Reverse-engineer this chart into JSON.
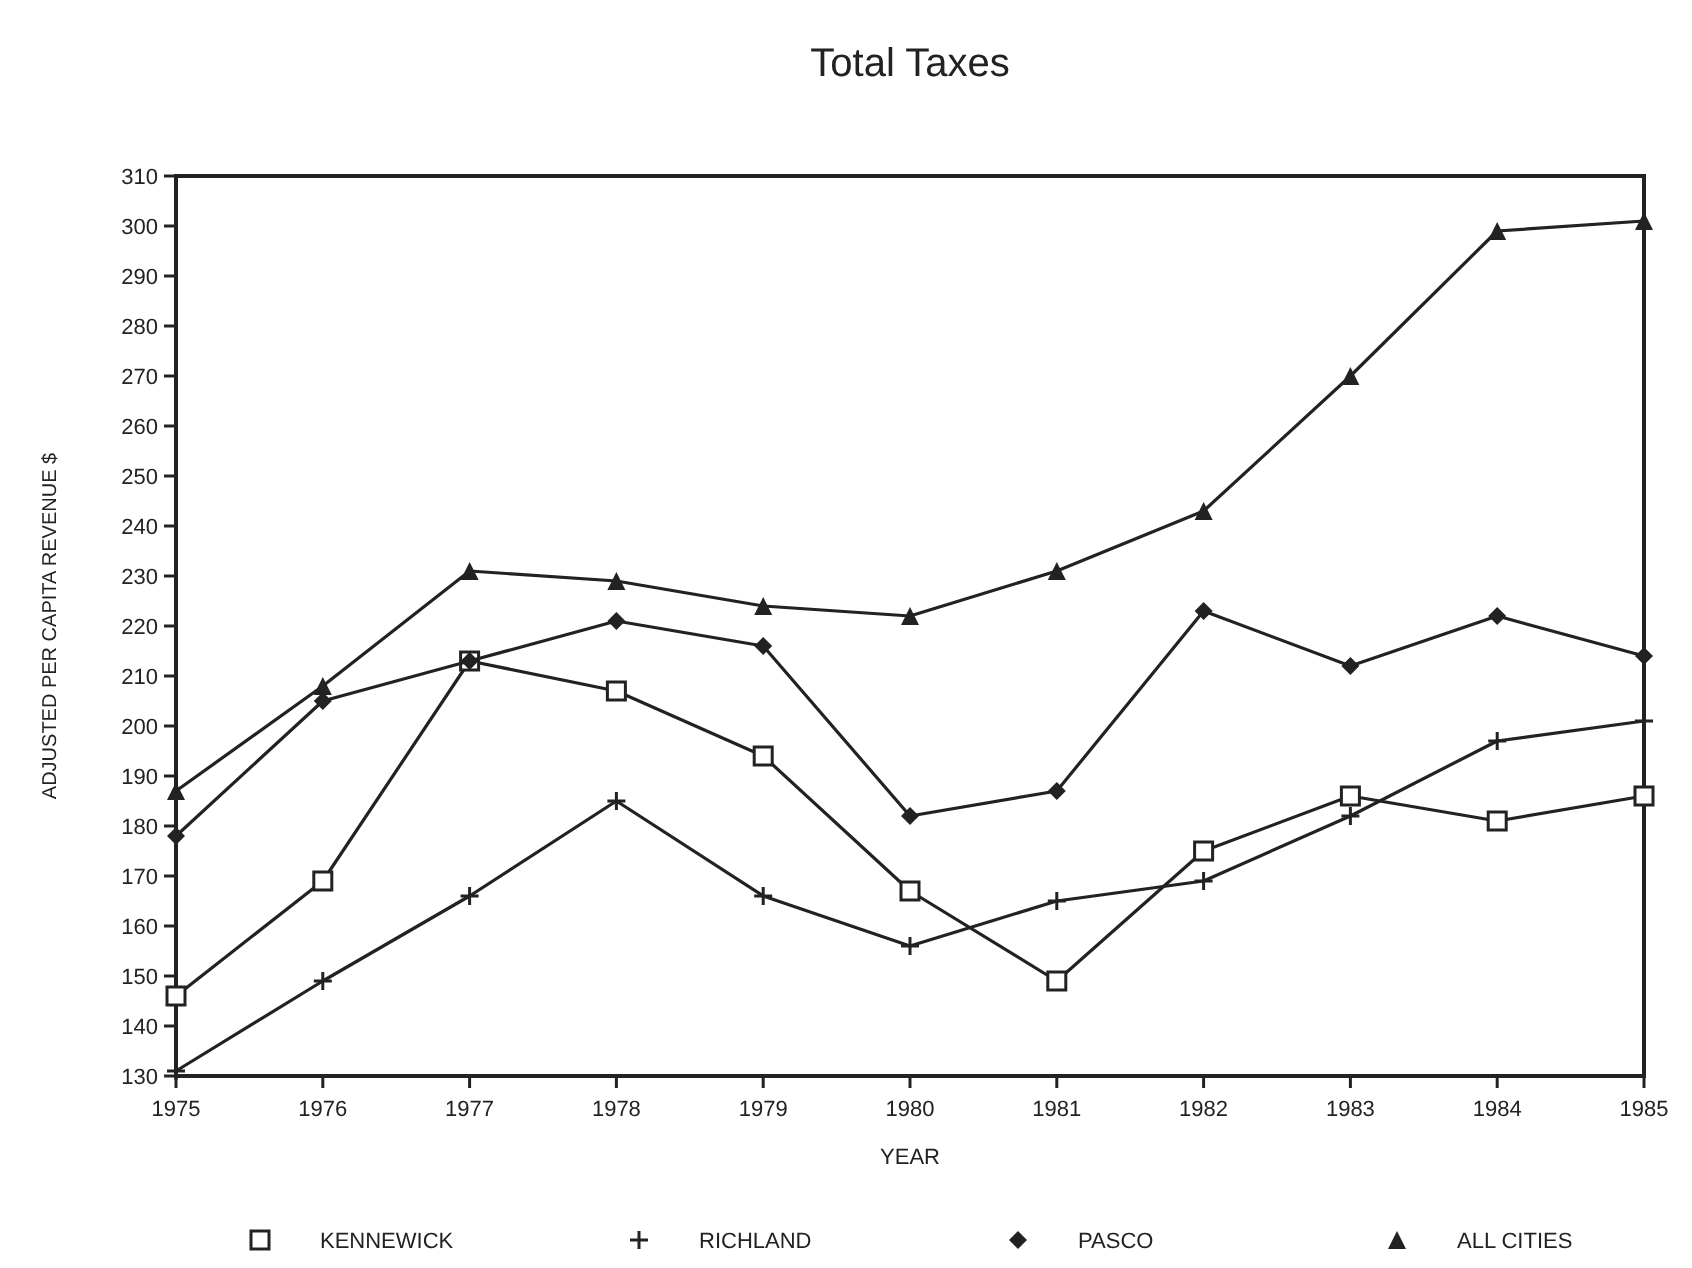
{
  "chart_data": {
    "type": "line",
    "title": "Total Taxes",
    "xlabel": "YEAR",
    "ylabel": "ADJUSTED PER CAPITA REVENUE $",
    "categories": [
      "1975",
      "1976",
      "1977",
      "1978",
      "1979",
      "1980",
      "1981",
      "1982",
      "1983",
      "1984",
      "1985"
    ],
    "series": [
      {
        "name": "KENNEWICK",
        "color": "#222222",
        "marker": "square",
        "values": [
          146,
          169,
          213,
          207,
          194,
          167,
          149,
          175,
          186,
          181,
          186
        ]
      },
      {
        "name": "RICHLAND",
        "color": "#222222",
        "marker": "cross",
        "values": [
          131,
          149,
          166,
          185,
          166,
          156,
          165,
          169,
          182,
          197,
          201
        ]
      },
      {
        "name": "PASCO",
        "color": "#222222",
        "marker": "diamond",
        "values": [
          178,
          205,
          213,
          221,
          216,
          182,
          187,
          223,
          212,
          222,
          214
        ]
      },
      {
        "name": "ALL CITIES",
        "color": "#222222",
        "marker": "triangle",
        "values": [
          187,
          208,
          231,
          229,
          224,
          222,
          231,
          243,
          270,
          299,
          301
        ]
      }
    ],
    "ylim": [
      130,
      310
    ],
    "yticks": [
      130,
      140,
      150,
      160,
      170,
      180,
      190,
      200,
      210,
      220,
      230,
      240,
      250,
      260,
      270,
      280,
      290,
      300,
      310
    ],
    "grid": false,
    "legend": "bottom",
    "line_style": "solid"
  }
}
